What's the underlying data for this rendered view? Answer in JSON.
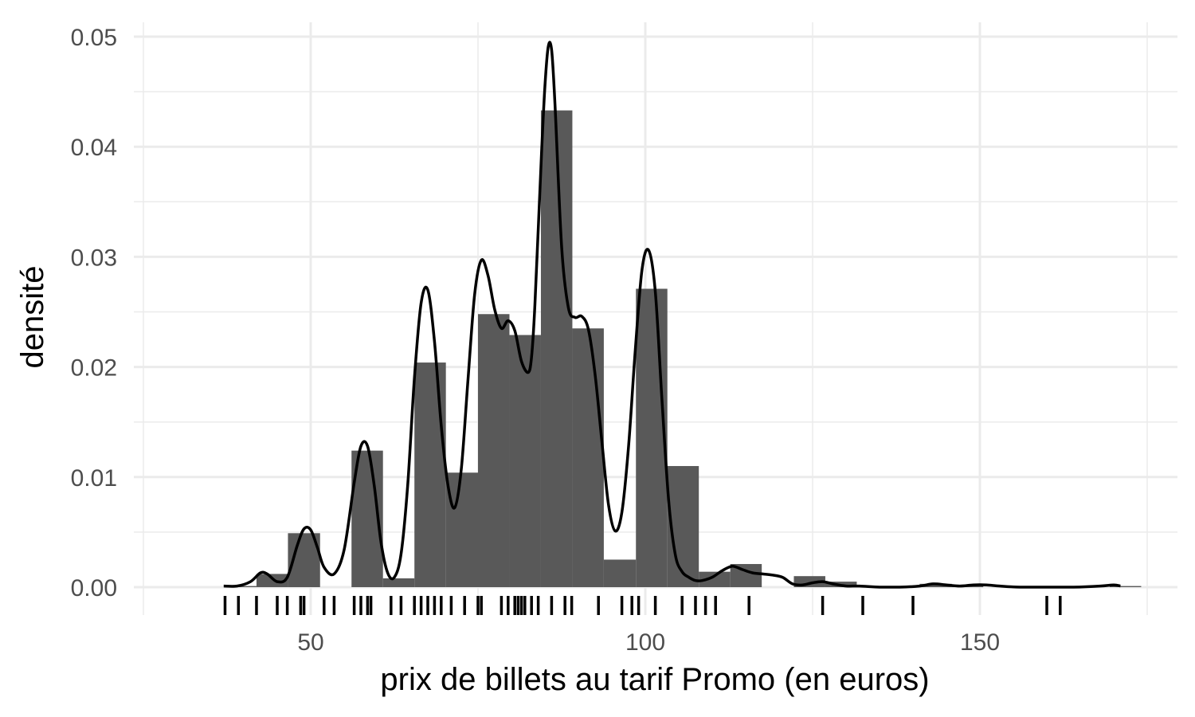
{
  "chart_data": {
    "type": "bar",
    "subtype": "histogram-with-density-and-rug",
    "title": "",
    "xlabel": "prix de billets au tarif Promo (en euros)",
    "ylabel": "densité",
    "xlim": [
      25,
      175
    ],
    "ylim": [
      0,
      0.05
    ],
    "x_ticks": [
      50,
      100,
      150
    ],
    "x_tick_labels": [
      "50",
      "100",
      "150"
    ],
    "y_ticks": [
      0,
      0.01,
      0.02,
      0.03,
      0.04,
      0.05
    ],
    "y_tick_labels": [
      "0.00",
      "0.01",
      "0.02",
      "0.03",
      "0.04",
      "0.05"
    ],
    "grid": true,
    "legend": "none",
    "colors": {
      "bars": "#595959",
      "density": "#000000",
      "rug": "#000000",
      "grid": "#ebebeb"
    },
    "histogram": {
      "bin_width": 4.72,
      "bins": [
        {
          "x0": 37.2,
          "x1": 41.9,
          "density": 0.0001
        },
        {
          "x0": 41.9,
          "x1": 46.6,
          "density": 0.0012
        },
        {
          "x0": 46.6,
          "x1": 51.4,
          "density": 0.0049
        },
        {
          "x0": 51.4,
          "x1": 56.1,
          "density": 0.0
        },
        {
          "x0": 56.1,
          "x1": 60.8,
          "density": 0.0124
        },
        {
          "x0": 60.8,
          "x1": 65.5,
          "density": 0.0008
        },
        {
          "x0": 65.5,
          "x1": 70.2,
          "density": 0.0204
        },
        {
          "x0": 70.2,
          "x1": 75.0,
          "density": 0.0104
        },
        {
          "x0": 75.0,
          "x1": 79.7,
          "density": 0.0248
        },
        {
          "x0": 79.7,
          "x1": 84.4,
          "density": 0.0229
        },
        {
          "x0": 84.4,
          "x1": 89.1,
          "density": 0.0433
        },
        {
          "x0": 89.1,
          "x1": 93.8,
          "density": 0.0235
        },
        {
          "x0": 93.8,
          "x1": 98.6,
          "density": 0.0025
        },
        {
          "x0": 98.6,
          "x1": 103.3,
          "density": 0.0271
        },
        {
          "x0": 103.3,
          "x1": 108.0,
          "density": 0.011
        },
        {
          "x0": 108.0,
          "x1": 112.7,
          "density": 0.0014
        },
        {
          "x0": 112.7,
          "x1": 117.4,
          "density": 0.0021
        },
        {
          "x0": 117.4,
          "x1": 122.2,
          "density": 0.0
        },
        {
          "x0": 122.2,
          "x1": 126.9,
          "density": 0.001
        },
        {
          "x0": 126.9,
          "x1": 131.6,
          "density": 0.0005
        },
        {
          "x0": 131.6,
          "x1": 136.3,
          "density": 0.0001
        },
        {
          "x0": 136.3,
          "x1": 141.0,
          "density": 0.0
        },
        {
          "x0": 141.0,
          "x1": 145.8,
          "density": 0.0003
        },
        {
          "x0": 145.8,
          "x1": 150.5,
          "density": 0.0001
        },
        {
          "x0": 150.5,
          "x1": 155.2,
          "density": 0.0
        },
        {
          "x0": 155.2,
          "x1": 159.9,
          "density": 0.0
        },
        {
          "x0": 159.9,
          "x1": 164.6,
          "density": 0.0
        },
        {
          "x0": 164.6,
          "x1": 169.4,
          "density": 0.0
        },
        {
          "x0": 169.4,
          "x1": 174.1,
          "density": 0.0001
        }
      ]
    },
    "density_curve": {
      "x": [
        37.0,
        39.0,
        41.0,
        42.5,
        43.5,
        45.0,
        46.5,
        48.0,
        49.0,
        50.0,
        51.0,
        52.0,
        53.5,
        55.0,
        56.5,
        57.5,
        58.5,
        59.5,
        60.5,
        61.5,
        62.5,
        63.5,
        64.5,
        65.5,
        66.5,
        67.5,
        68.5,
        69.5,
        70.5,
        71.5,
        72.5,
        73.5,
        74.5,
        75.5,
        76.5,
        77.5,
        78.5,
        79.5,
        80.5,
        81.5,
        82.5,
        83.0,
        83.5,
        84.5,
        85.0,
        85.5,
        86.0,
        86.5,
        87.5,
        88.5,
        89.5,
        90.5,
        91.5,
        92.5,
        93.5,
        94.5,
        95.5,
        96.5,
        97.5,
        98.5,
        99.5,
        100.5,
        101.5,
        102.5,
        103.5,
        104.5,
        105.5,
        106.5,
        107.5,
        108.5,
        110.0,
        111.5,
        113.0,
        114.5,
        116.0,
        117.5,
        119.0,
        120.5,
        122.0,
        123.5,
        125.0,
        126.5,
        128.0,
        130.0,
        132.0,
        135.0,
        138.0,
        141.0,
        143.0,
        145.0,
        147.0,
        149.0,
        151.0,
        153.0,
        156.0,
        160.0,
        164.0,
        168.0,
        170.0,
        171.0
      ],
      "y": [
        0.0001,
        0.0001,
        0.0005,
        0.0013,
        0.0012,
        0.0005,
        0.0009,
        0.0038,
        0.0053,
        0.0052,
        0.0036,
        0.0018,
        0.0012,
        0.0034,
        0.0095,
        0.0128,
        0.0128,
        0.0092,
        0.0041,
        0.0013,
        0.0009,
        0.003,
        0.0093,
        0.019,
        0.0258,
        0.027,
        0.0223,
        0.0147,
        0.0093,
        0.0072,
        0.0107,
        0.0188,
        0.0266,
        0.0297,
        0.0283,
        0.0252,
        0.0235,
        0.0242,
        0.0233,
        0.0205,
        0.0195,
        0.0209,
        0.0256,
        0.0395,
        0.0455,
        0.0491,
        0.0488,
        0.0439,
        0.0309,
        0.0254,
        0.0245,
        0.0246,
        0.0234,
        0.0193,
        0.0133,
        0.0075,
        0.0051,
        0.0068,
        0.0128,
        0.0215,
        0.0288,
        0.0306,
        0.0268,
        0.0169,
        0.0078,
        0.0029,
        0.0014,
        0.0009,
        0.0006,
        0.0006,
        0.0009,
        0.0015,
        0.0019,
        0.0016,
        0.0013,
        0.0012,
        0.0011,
        0.0009,
        0.0003,
        0.0002,
        0.0004,
        0.0005,
        0.0003,
        0.0001,
        0.0001,
        0.0,
        0.0,
        0.0001,
        0.0003,
        0.0002,
        0.0001,
        0.0002,
        0.0002,
        0.0001,
        0.0,
        0.0,
        0.0,
        0.0001,
        0.0002,
        0.0001
      ]
    },
    "rug": [
      37.2,
      39.2,
      41.9,
      45.0,
      46.5,
      48.5,
      49.0,
      52.0,
      53.5,
      56.5,
      57.5,
      58.5,
      59.0,
      62.0,
      63.5,
      65.5,
      66.5,
      67.5,
      68.5,
      69.5,
      71.0,
      73.0,
      75.0,
      75.5,
      78.5,
      79.5,
      80.5,
      81.0,
      81.5,
      82.0,
      83.0,
      84.0,
      86.0,
      88.0,
      89.0,
      93.0,
      96.5,
      98.0,
      99.0,
      101.5,
      105.5,
      107.5,
      109.0,
      110.5,
      115.5,
      126.5,
      132.5,
      140.0,
      160.0,
      162.0
    ]
  }
}
